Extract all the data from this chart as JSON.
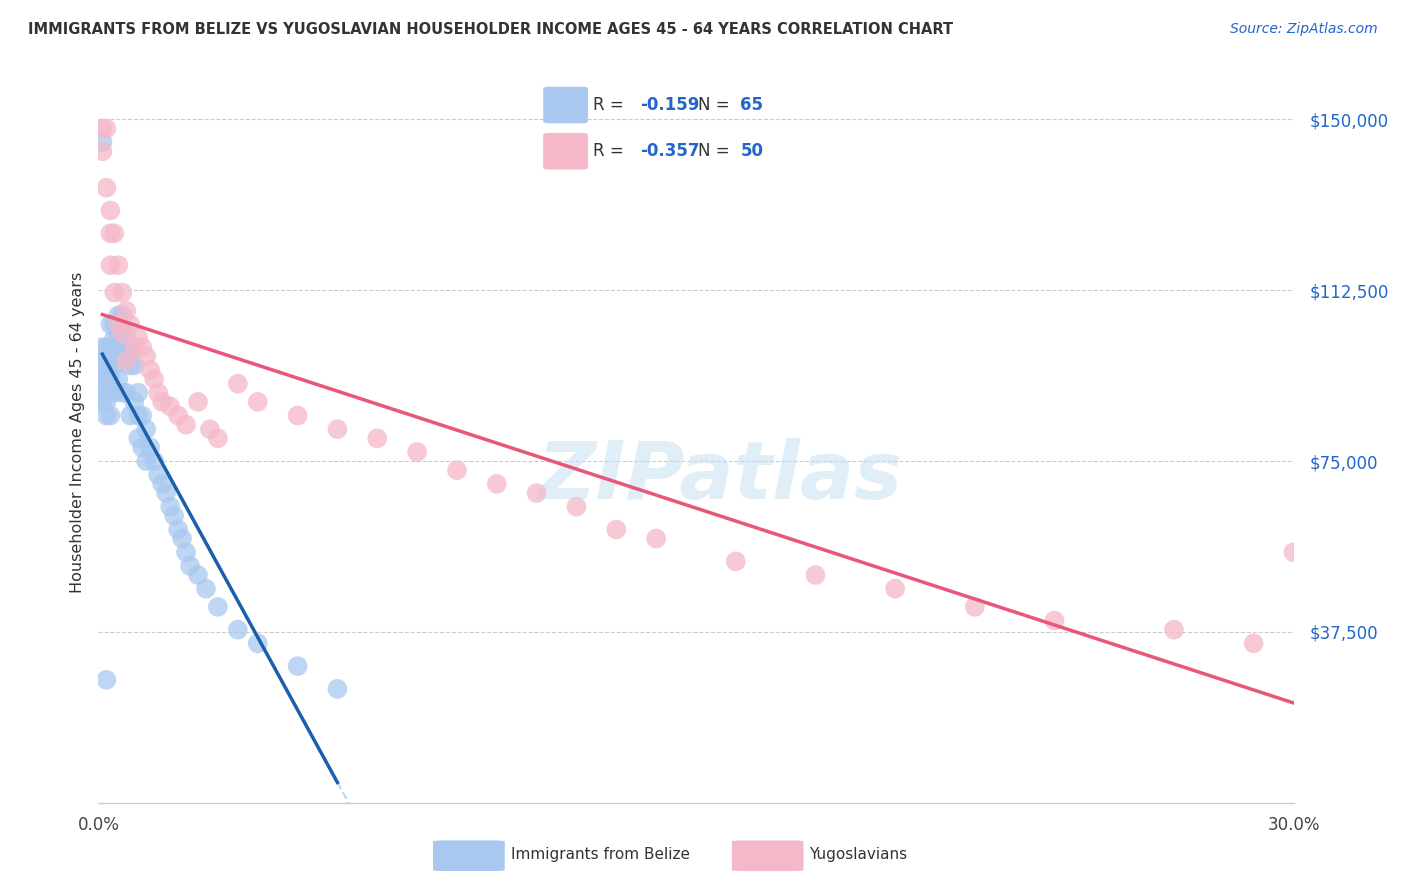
{
  "title": "IMMIGRANTS FROM BELIZE VS YUGOSLAVIAN HOUSEHOLDER INCOME AGES 45 - 64 YEARS CORRELATION CHART",
  "source": "Source: ZipAtlas.com",
  "ylabel": "Householder Income Ages 45 - 64 years",
  "xlim": [
    0.0,
    0.3
  ],
  "ylim": [
    0,
    162500
  ],
  "ytick_values": [
    37500,
    75000,
    112500,
    150000
  ],
  "ytick_labels": [
    "$37,500",
    "$75,000",
    "$112,500",
    "$150,000"
  ],
  "blue_color": "#a8c8f0",
  "pink_color": "#f5b8c8",
  "blue_line_color": "#1a5faa",
  "pink_line_color": "#e8577a",
  "dashed_line_color": "#b8d8f0",
  "watermark": "ZIPatlas",
  "belize_R": -0.159,
  "belize_N": 65,
  "yugo_R": -0.357,
  "yugo_N": 50,
  "belize_x": [
    0.001,
    0.001,
    0.001,
    0.001,
    0.001,
    0.002,
    0.002,
    0.002,
    0.002,
    0.002,
    0.002,
    0.003,
    0.003,
    0.003,
    0.003,
    0.003,
    0.003,
    0.004,
    0.004,
    0.004,
    0.004,
    0.004,
    0.005,
    0.005,
    0.005,
    0.005,
    0.006,
    0.006,
    0.006,
    0.006,
    0.007,
    0.007,
    0.007,
    0.008,
    0.008,
    0.008,
    0.009,
    0.009,
    0.01,
    0.01,
    0.01,
    0.011,
    0.011,
    0.012,
    0.012,
    0.013,
    0.014,
    0.015,
    0.016,
    0.017,
    0.018,
    0.019,
    0.02,
    0.021,
    0.022,
    0.023,
    0.025,
    0.027,
    0.03,
    0.035,
    0.04,
    0.05,
    0.06,
    0.001,
    0.002
  ],
  "belize_y": [
    100000,
    97000,
    94000,
    91000,
    88000,
    100000,
    97000,
    94000,
    91000,
    88000,
    85000,
    105000,
    100000,
    97000,
    94000,
    91000,
    85000,
    105000,
    102000,
    99000,
    96000,
    90000,
    107000,
    103000,
    99000,
    93000,
    107000,
    103000,
    99000,
    90000,
    103000,
    100000,
    90000,
    100000,
    96000,
    85000,
    96000,
    88000,
    90000,
    85000,
    80000,
    85000,
    78000,
    82000,
    75000,
    78000,
    75000,
    72000,
    70000,
    68000,
    65000,
    63000,
    60000,
    58000,
    55000,
    52000,
    50000,
    47000,
    43000,
    38000,
    35000,
    30000,
    25000,
    145000,
    27000
  ],
  "yugo_x": [
    0.001,
    0.001,
    0.002,
    0.002,
    0.003,
    0.003,
    0.003,
    0.004,
    0.004,
    0.005,
    0.005,
    0.006,
    0.006,
    0.007,
    0.007,
    0.008,
    0.009,
    0.01,
    0.011,
    0.012,
    0.013,
    0.014,
    0.015,
    0.016,
    0.018,
    0.02,
    0.022,
    0.025,
    0.028,
    0.03,
    0.035,
    0.04,
    0.05,
    0.06,
    0.07,
    0.08,
    0.09,
    0.1,
    0.11,
    0.12,
    0.13,
    0.14,
    0.16,
    0.18,
    0.2,
    0.22,
    0.24,
    0.27,
    0.29,
    0.3
  ],
  "yugo_y": [
    148000,
    143000,
    148000,
    135000,
    130000,
    125000,
    118000,
    125000,
    112000,
    118000,
    105000,
    112000,
    103000,
    108000,
    97000,
    105000,
    100000,
    102000,
    100000,
    98000,
    95000,
    93000,
    90000,
    88000,
    87000,
    85000,
    83000,
    88000,
    82000,
    80000,
    92000,
    88000,
    85000,
    82000,
    80000,
    77000,
    73000,
    70000,
    68000,
    65000,
    60000,
    58000,
    53000,
    50000,
    47000,
    43000,
    40000,
    38000,
    35000,
    55000
  ]
}
